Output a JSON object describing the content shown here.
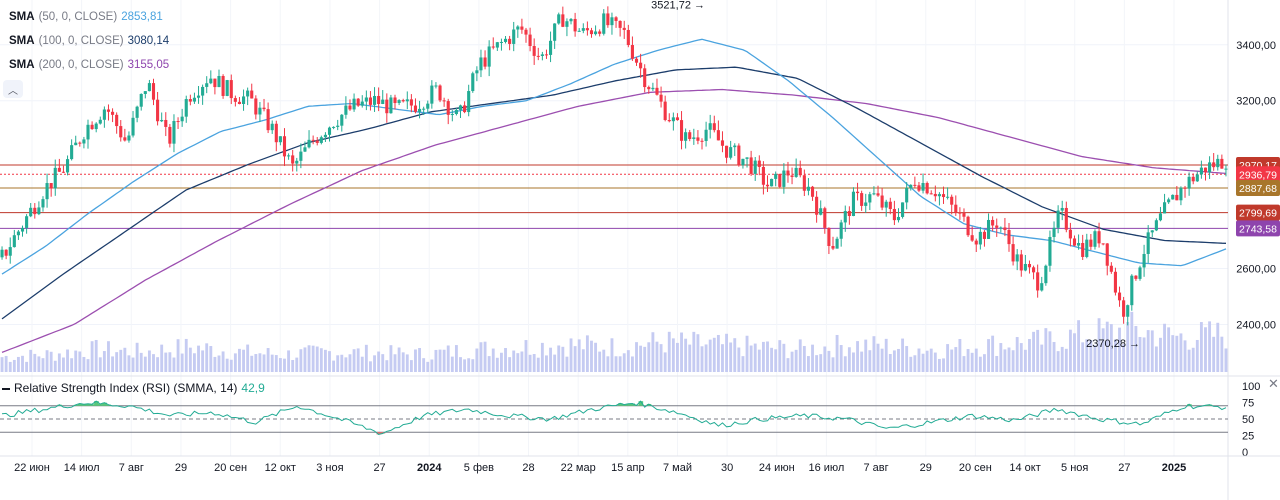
{
  "legend": [
    {
      "name": "SMA",
      "params": "(50, 0, CLOSE)",
      "value": "2853,81",
      "color": "#4aa3df"
    },
    {
      "name": "SMA",
      "params": "(100, 0, CLOSE)",
      "value": "3080,14",
      "color": "#1c3d6b"
    },
    {
      "name": "SMA",
      "params": "(200, 0, CLOSE)",
      "value": "3155,05",
      "color": "#8e44ad"
    }
  ],
  "rsi": {
    "label": "Relative Strength Index (RSI) (SMMA, 14)",
    "value": "42,9"
  },
  "collapse_icon": "chevron-up-icon",
  "close_icon": "close-icon",
  "chart_data": {
    "type": "candlestick",
    "colors": {
      "up": "#22ab94",
      "down": "#f23645",
      "sma50": "#4aa3df",
      "sma100": "#1c3d6b",
      "sma200": "#9c4fb0",
      "volume": "#c5cbf2",
      "rsi": "#22ab94"
    },
    "x_labels": [
      "22 июн",
      "14 июл",
      "7 авг",
      "29",
      "20 сен",
      "12 окт",
      "3 ноя",
      "27",
      "2024",
      "5 фев",
      "28",
      "22 мар",
      "15 апр",
      "7 май",
      "30",
      "24 июн",
      "16 июл",
      "7 авг",
      "29",
      "20 сен",
      "14 окт",
      "5 ноя",
      "27",
      "2025"
    ],
    "y_ticks": [
      "3400,00",
      "3200,00",
      "2800,00",
      "2600,00",
      "2400,00"
    ],
    "y_range": [
      2230,
      3560
    ],
    "rsi_ticks": [
      "100",
      "75",
      "50",
      "25",
      "0"
    ],
    "rsi_levels": [
      70,
      50,
      30
    ],
    "annotations": [
      {
        "text": "3521,72 →",
        "price": 3521.72
      },
      {
        "text": "2370,28 →",
        "price": 2370.28
      }
    ],
    "price_lines": [
      {
        "label": "2970,17",
        "price": 2970.17,
        "color": "#c0392b",
        "style": "solid"
      },
      {
        "label": "2936,79",
        "price": 2936.79,
        "color": "#f23645",
        "style": "dotted"
      },
      {
        "label": "2887,68",
        "price": 2887.68,
        "color": "#a8762b",
        "style": "solid"
      },
      {
        "label": "2799,69",
        "price": 2799.69,
        "color": "#c0392b",
        "style": "solid"
      },
      {
        "label": "2743,58",
        "price": 2743.58,
        "color": "#8e44ad",
        "style": "solid"
      }
    ],
    "close_anchors": [
      2640,
      2760,
      2880,
      2960,
      3100,
      3180,
      3050,
      3270,
      3050,
      3220,
      3290,
      3230,
      3200,
      3100,
      2960,
      3060,
      3130,
      3180,
      3200,
      3170,
      3190,
      3240,
      3130,
      3330,
      3400,
      3460,
      3350,
      3500,
      3440,
      3480,
      3440,
      3280,
      3160,
      3060,
      3100,
      3020,
      2980,
      2890,
      2950,
      2880,
      2680,
      2840,
      2860,
      2780,
      2920,
      2880,
      2800,
      2710,
      2770,
      2620,
      2550,
      2800,
      2670,
      2720,
      2440,
      2660,
      2800,
      2900,
      2960,
      2990
    ],
    "sma50_anchors": [
      2580,
      2680,
      2800,
      2910,
      3010,
      3090,
      3130,
      3180,
      3190,
      3170,
      3150,
      3180,
      3200,
      3260,
      3330,
      3380,
      3420,
      3380,
      3270,
      3140,
      3000,
      2860,
      2760,
      2720,
      2700,
      2660,
      2620,
      2610,
      2670
    ],
    "sma100_anchors": [
      2420,
      2580,
      2730,
      2880,
      2970,
      3050,
      3100,
      3160,
      3190,
      3220,
      3270,
      3310,
      3320,
      3280,
      3170,
      3050,
      2930,
      2820,
      2740,
      2700,
      2690
    ],
    "sma200_anchors": [
      2300,
      2400,
      2560,
      2700,
      2830,
      2950,
      3040,
      3110,
      3180,
      3230,
      3240,
      3220,
      3190,
      3140,
      3070,
      3000,
      2960,
      2940
    ],
    "volume_anchors": [
      0.3,
      0.35,
      0.45,
      0.4,
      0.5,
      0.4,
      0.35,
      0.4,
      0.38,
      0.35,
      0.45,
      0.5,
      0.55,
      0.5,
      0.6,
      0.55,
      0.5,
      0.45,
      0.55,
      0.5,
      0.45,
      0.55,
      0.6,
      0.75,
      0.85,
      0.7,
      0.75
    ],
    "rsi_anchors": [
      55,
      65,
      75,
      70,
      55,
      60,
      45,
      70,
      50,
      28,
      55,
      65,
      55,
      50,
      65,
      75,
      60,
      40,
      50,
      55,
      50,
      35,
      45,
      55,
      48,
      65,
      50,
      42,
      70,
      68
    ]
  }
}
